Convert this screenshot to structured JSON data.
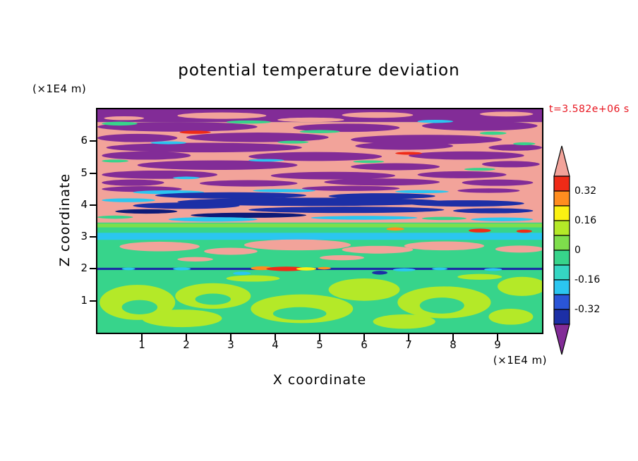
{
  "title": "potential temperature deviation",
  "timestamp": "t=3.582e+06 s",
  "x_axis": {
    "title": "X coordinate",
    "units": "(×1E4 m)",
    "ticks": [
      1,
      2,
      3,
      4,
      5,
      6,
      7,
      8,
      9
    ],
    "range": [
      0,
      10
    ]
  },
  "z_axis": {
    "title": "Z coordinate",
    "units": "(×1E4 m)",
    "ticks": [
      1,
      2,
      3,
      4,
      5,
      6
    ],
    "range": [
      0,
      7
    ]
  },
  "colorbar": {
    "labels": [
      "0.32",
      "0.16",
      "0",
      "-0.16",
      "-0.32"
    ],
    "segment_colors": [
      "#ef2b17",
      "#ff8d1f",
      "#fbf112",
      "#b4e928",
      "#7ede4c",
      "#37d48b",
      "#35d6c3",
      "#2bc6f0",
      "#2a55d8",
      "#1c2fa6"
    ],
    "arrow_top_color": "#f2a39a",
    "arrow_bottom_color": "#822c97"
  },
  "palette": {
    "salmon": "#f2a39a",
    "purple": "#822c97",
    "red": "#ef2b17",
    "orange": "#ff8d1f",
    "yellow": "#fbf112",
    "chartreuse": "#b4e928",
    "lightgreen": "#7ede4c",
    "green": "#37d48b",
    "teal": "#35d6c3",
    "cyan": "#2bc6f0",
    "blue": "#2a55d8",
    "navy": "#1c2fa6",
    "darkblue": "#0e1a78"
  },
  "chart_data": {
    "type": "heatmap",
    "title": "potential temperature deviation",
    "xlabel": "X coordinate",
    "ylabel": "Z coordinate",
    "x_range": [
      0,
      10
    ],
    "z_range": [
      0,
      7
    ],
    "contour_levels": [
      -0.4,
      -0.32,
      -0.24,
      -0.16,
      -0.08,
      0,
      0.08,
      0.16,
      0.24,
      0.32,
      0.4
    ],
    "legend_position": "right",
    "grid": false,
    "base_layers": [
      {
        "z0": 0.0,
        "z1": 3.45,
        "color": "green"
      },
      {
        "z0": 3.45,
        "z1": 6.6,
        "color": "salmon"
      },
      {
        "z0": 6.6,
        "z1": 7.0,
        "color": "purple"
      }
    ],
    "bands": [
      {
        "z": 3.36,
        "h": 0.12,
        "color": "lightgreen"
      },
      {
        "z": 3.02,
        "h": 0.22,
        "color": "cyan"
      },
      {
        "z": 2.0,
        "h": 0.07,
        "color": "navy"
      }
    ],
    "streaks": [
      [
        2.8,
        6.8,
        2.0,
        0.2,
        "salmon"
      ],
      [
        6.3,
        6.82,
        1.6,
        0.18,
        "salmon"
      ],
      [
        9.2,
        6.85,
        1.2,
        0.15,
        "salmon"
      ],
      [
        4.8,
        6.67,
        1.5,
        0.14,
        "salmon"
      ],
      [
        0.6,
        6.72,
        0.9,
        0.12,
        "salmon"
      ],
      [
        1.8,
        6.45,
        3.6,
        0.3,
        "purple"
      ],
      [
        5.6,
        6.42,
        2.4,
        0.26,
        "purple"
      ],
      [
        8.6,
        6.48,
        2.6,
        0.3,
        "purple"
      ],
      [
        0.9,
        6.1,
        1.8,
        0.26,
        "purple"
      ],
      [
        3.6,
        6.12,
        3.2,
        0.3,
        "purple"
      ],
      [
        7.4,
        6.05,
        3.4,
        0.3,
        "purple"
      ],
      [
        2.4,
        5.8,
        4.4,
        0.3,
        "purple"
      ],
      [
        6.9,
        5.85,
        2.2,
        0.24,
        "purple"
      ],
      [
        9.4,
        5.8,
        1.2,
        0.2,
        "purple"
      ],
      [
        1.1,
        5.55,
        2.0,
        0.26,
        "purple"
      ],
      [
        4.9,
        5.52,
        3.0,
        0.28,
        "purple"
      ],
      [
        8.3,
        5.55,
        2.6,
        0.26,
        "purple"
      ],
      [
        2.7,
        5.25,
        3.6,
        0.3,
        "purple"
      ],
      [
        6.7,
        5.2,
        2.0,
        0.22,
        "purple"
      ],
      [
        9.3,
        5.28,
        1.3,
        0.2,
        "purple"
      ],
      [
        1.4,
        4.95,
        2.6,
        0.26,
        "purple"
      ],
      [
        5.3,
        4.92,
        2.8,
        0.24,
        "purple"
      ],
      [
        8.2,
        4.95,
        2.0,
        0.22,
        "purple"
      ],
      [
        0.8,
        4.7,
        1.4,
        0.2,
        "purple"
      ],
      [
        3.4,
        4.68,
        2.2,
        0.2,
        "purple"
      ],
      [
        6.4,
        4.72,
        2.6,
        0.22,
        "purple"
      ],
      [
        9.0,
        4.7,
        1.6,
        0.2,
        "purple"
      ],
      [
        0.5,
        6.55,
        0.8,
        0.12,
        "green"
      ],
      [
        3.4,
        6.6,
        1.0,
        0.1,
        "green"
      ],
      [
        7.6,
        6.62,
        0.8,
        0.1,
        "cyan"
      ],
      [
        2.2,
        6.28,
        0.7,
        0.1,
        "red"
      ],
      [
        5.0,
        6.3,
        0.9,
        0.1,
        "green"
      ],
      [
        8.9,
        6.25,
        0.6,
        0.1,
        "green"
      ],
      [
        1.6,
        5.95,
        0.8,
        0.09,
        "cyan"
      ],
      [
        4.4,
        5.97,
        0.7,
        0.09,
        "green"
      ],
      [
        9.6,
        5.92,
        0.5,
        0.09,
        "green"
      ],
      [
        7.0,
        5.62,
        0.6,
        0.09,
        "red"
      ],
      [
        0.4,
        5.38,
        0.6,
        0.09,
        "green"
      ],
      [
        3.8,
        5.4,
        0.8,
        0.08,
        "cyan"
      ],
      [
        6.1,
        5.36,
        0.7,
        0.08,
        "green"
      ],
      [
        8.6,
        5.12,
        0.7,
        0.09,
        "green"
      ],
      [
        2.0,
        4.85,
        0.6,
        0.08,
        "cyan"
      ],
      [
        1.0,
        4.5,
        1.8,
        0.18,
        "purple"
      ],
      [
        5.7,
        4.52,
        2.2,
        0.16,
        "purple"
      ],
      [
        8.8,
        4.45,
        1.4,
        0.14,
        "purple"
      ],
      [
        1.6,
        4.4,
        1.6,
        0.12,
        "cyan"
      ],
      [
        4.2,
        4.45,
        1.4,
        0.1,
        "cyan"
      ],
      [
        7.3,
        4.42,
        1.2,
        0.1,
        "cyan"
      ],
      [
        3.0,
        4.3,
        3.4,
        0.2,
        "navy"
      ],
      [
        6.4,
        4.28,
        2.4,
        0.18,
        "navy"
      ],
      [
        0.7,
        4.15,
        1.2,
        0.12,
        "cyan"
      ],
      [
        4.8,
        4.1,
        6.0,
        0.26,
        "navy"
      ],
      [
        8.3,
        4.05,
        2.6,
        0.2,
        "navy"
      ],
      [
        2.0,
        3.98,
        2.4,
        0.2,
        "navy"
      ],
      [
        5.6,
        3.85,
        4.4,
        0.2,
        "navy"
      ],
      [
        8.9,
        3.82,
        1.8,
        0.16,
        "navy"
      ],
      [
        1.1,
        3.8,
        1.4,
        0.14,
        "darkblue"
      ],
      [
        3.4,
        3.68,
        2.6,
        0.16,
        "darkblue"
      ],
      [
        2.6,
        3.55,
        2.0,
        0.14,
        "cyan"
      ],
      [
        6.0,
        3.6,
        2.4,
        0.12,
        "cyan"
      ],
      [
        9.1,
        3.55,
        1.4,
        0.12,
        "cyan"
      ],
      [
        0.4,
        3.62,
        0.8,
        0.1,
        "green"
      ],
      [
        7.8,
        3.58,
        1.0,
        0.1,
        "green"
      ],
      [
        8.6,
        3.2,
        0.5,
        0.12,
        "red"
      ],
      [
        6.7,
        3.25,
        0.4,
        0.1,
        "orange"
      ],
      [
        9.6,
        3.18,
        0.35,
        0.1,
        "red"
      ],
      [
        1.4,
        2.7,
        1.8,
        0.3,
        "salmon"
      ],
      [
        3.0,
        2.55,
        1.2,
        0.22,
        "salmon"
      ],
      [
        4.5,
        2.75,
        2.4,
        0.34,
        "salmon"
      ],
      [
        6.3,
        2.6,
        1.6,
        0.24,
        "salmon"
      ],
      [
        7.8,
        2.72,
        1.8,
        0.28,
        "salmon"
      ],
      [
        9.5,
        2.62,
        1.1,
        0.22,
        "salmon"
      ],
      [
        5.5,
        2.35,
        1.0,
        0.16,
        "salmon"
      ],
      [
        2.2,
        2.3,
        0.8,
        0.14,
        "salmon"
      ],
      [
        3.7,
        2.02,
        0.5,
        0.12,
        "orange"
      ],
      [
        4.25,
        2.0,
        0.9,
        0.14,
        "red"
      ],
      [
        4.7,
        2.0,
        0.45,
        0.1,
        "yellow"
      ],
      [
        5.1,
        2.02,
        0.3,
        0.08,
        "orange"
      ],
      [
        1.9,
        2.0,
        0.4,
        0.09,
        "cyan"
      ],
      [
        6.9,
        1.97,
        0.5,
        0.1,
        "cyan"
      ],
      [
        7.7,
        2.0,
        0.35,
        0.08,
        "cyan"
      ],
      [
        8.9,
        1.98,
        0.4,
        0.09,
        "cyan"
      ],
      [
        0.7,
        2.0,
        0.3,
        0.08,
        "cyan"
      ],
      [
        6.35,
        1.88,
        0.35,
        0.12,
        "navy"
      ],
      [
        3.25,
        1.86,
        0.4,
        0.1,
        "cyan"
      ],
      [
        0.9,
        0.95,
        1.7,
        1.1,
        "chartreuse"
      ],
      [
        2.6,
        1.15,
        1.7,
        0.8,
        "chartreuse"
      ],
      [
        1.9,
        0.45,
        1.8,
        0.55,
        "chartreuse"
      ],
      [
        4.6,
        0.75,
        2.3,
        0.9,
        "chartreuse"
      ],
      [
        6.0,
        1.35,
        1.6,
        0.7,
        "chartreuse"
      ],
      [
        7.8,
        0.95,
        2.1,
        1.0,
        "chartreuse"
      ],
      [
        9.55,
        1.45,
        1.1,
        0.6,
        "chartreuse"
      ],
      [
        6.9,
        0.35,
        1.4,
        0.45,
        "chartreuse"
      ],
      [
        9.3,
        0.5,
        1.0,
        0.5,
        "chartreuse"
      ],
      [
        3.5,
        1.7,
        1.2,
        0.2,
        "chartreuse"
      ],
      [
        8.6,
        1.75,
        1.0,
        0.18,
        "chartreuse"
      ],
      [
        0.95,
        0.8,
        0.8,
        0.45,
        "green"
      ],
      [
        4.55,
        0.6,
        1.2,
        0.4,
        "green"
      ],
      [
        7.75,
        0.85,
        1.0,
        0.5,
        "green"
      ],
      [
        2.6,
        1.05,
        0.8,
        0.35,
        "green"
      ]
    ]
  }
}
